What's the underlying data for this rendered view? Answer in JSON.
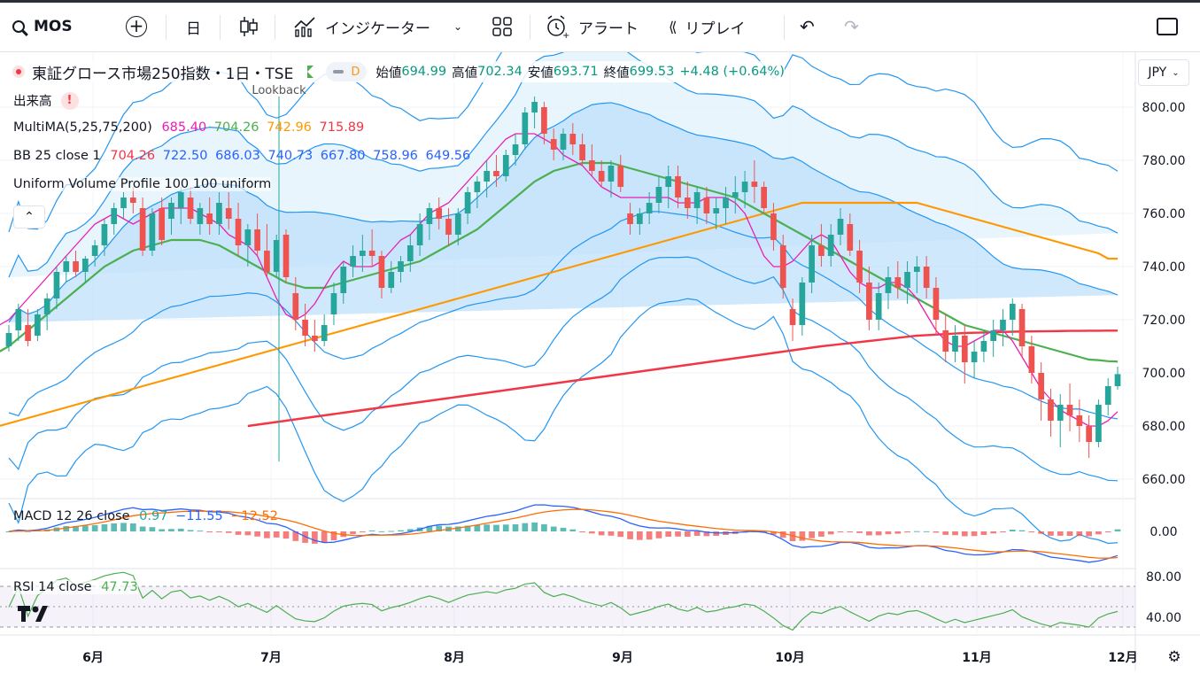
{
  "toolbar": {
    "symbol": "MOS",
    "interval": "日",
    "indicators_label": "インジケーター",
    "alert_label": "アラート",
    "replay_label": "リプレイ"
  },
  "legend": {
    "title": "東証グロース市場250指数・1日・TSE",
    "badge_d": "D",
    "open_label": "始値",
    "open": "694.99",
    "high_label": "高値",
    "high": "702.34",
    "low_label": "安値",
    "low": "693.71",
    "close_label": "終値",
    "close": "699.53",
    "change": "+4.48 (+0.64%)",
    "volume_label": "出来高",
    "multima_label": "MultiMA(5,25,75,200)",
    "multima_vals": [
      "685.40",
      "704.26",
      "742.96",
      "715.89"
    ],
    "bb_label": "BB 25 close 1",
    "bb_vals": [
      "704.26",
      "722.50",
      "686.03",
      "740.73",
      "667.80",
      "758.96",
      "649.56"
    ],
    "uvp_label": "Uniform Volume Profile 100 100 uniform",
    "lookback": "Lookback",
    "currency": "JPY",
    "macd_label": "MACD 12 26 close",
    "macd_vals": [
      "0.97",
      "−11.55",
      "−12.52"
    ],
    "rsi_label": "RSI 14 close",
    "rsi_val": "47.73"
  },
  "colors": {
    "up": "#26a69a",
    "down": "#ef5350",
    "ma5": "#e91eb4",
    "ma25": "#4caf50",
    "ma75": "#ff9800",
    "ma200": "#f23645",
    "bb": "#2196f3",
    "bb_fill": "#bbdefb"
  },
  "chart_data": {
    "type": "candlestick",
    "price_axis": [
      660,
      680,
      700,
      720,
      740,
      760,
      780,
      800
    ],
    "price_axis_labels": [
      "660.00",
      "680.00",
      "700.00",
      "720.00",
      "740.00",
      "760.00",
      "780.00",
      "800.00"
    ],
    "x_labels": [
      "6月",
      "7月",
      "8月",
      "9月",
      "10月",
      "11月",
      "12月"
    ],
    "ohlc": [
      [
        710,
        718,
        708,
        715
      ],
      [
        716,
        726,
        712,
        724
      ],
      [
        718,
        724,
        710,
        712
      ],
      [
        714,
        724,
        712,
        722
      ],
      [
        722,
        730,
        716,
        728
      ],
      [
        728,
        740,
        724,
        738
      ],
      [
        738,
        744,
        734,
        742
      ],
      [
        742,
        746,
        736,
        738
      ],
      [
        738,
        744,
        734,
        743
      ],
      [
        744,
        750,
        740,
        748
      ],
      [
        748,
        758,
        744,
        756
      ],
      [
        756,
        764,
        752,
        762
      ],
      [
        762,
        768,
        758,
        766
      ],
      [
        766,
        770,
        760,
        764
      ],
      [
        762,
        766,
        744,
        746
      ],
      [
        746,
        762,
        744,
        760
      ],
      [
        762,
        766,
        748,
        750
      ],
      [
        758,
        766,
        752,
        764
      ],
      [
        762,
        770,
        756,
        768
      ],
      [
        766,
        770,
        756,
        758
      ],
      [
        756,
        764,
        752,
        762
      ],
      [
        760,
        766,
        752,
        756
      ],
      [
        756,
        768,
        752,
        764
      ],
      [
        762,
        768,
        754,
        758
      ],
      [
        758,
        764,
        744,
        748
      ],
      [
        748,
        756,
        740,
        754
      ],
      [
        754,
        760,
        744,
        746
      ],
      [
        746,
        756,
        736,
        738
      ],
      [
        738,
        752,
        736,
        750
      ],
      [
        752,
        754,
        734,
        736
      ],
      [
        730,
        736,
        716,
        720
      ],
      [
        720,
        726,
        710,
        714
      ],
      [
        714,
        720,
        708,
        712
      ],
      [
        712,
        722,
        710,
        718
      ],
      [
        722,
        734,
        718,
        730
      ],
      [
        730,
        742,
        726,
        740
      ],
      [
        740,
        748,
        736,
        744
      ],
      [
        744,
        752,
        738,
        746
      ],
      [
        746,
        754,
        740,
        744
      ],
      [
        744,
        746,
        728,
        732
      ],
      [
        732,
        742,
        730,
        738
      ],
      [
        738,
        744,
        734,
        742
      ],
      [
        742,
        752,
        738,
        748
      ],
      [
        748,
        760,
        744,
        756
      ],
      [
        756,
        764,
        750,
        762
      ],
      [
        762,
        766,
        754,
        758
      ],
      [
        758,
        762,
        748,
        752
      ],
      [
        752,
        762,
        748,
        760
      ],
      [
        760,
        770,
        756,
        768
      ],
      [
        768,
        774,
        762,
        772
      ],
      [
        772,
        780,
        766,
        776
      ],
      [
        776,
        782,
        770,
        774
      ],
      [
        774,
        784,
        772,
        782
      ],
      [
        782,
        790,
        778,
        786
      ],
      [
        786,
        800,
        784,
        798
      ],
      [
        798,
        804,
        792,
        802
      ],
      [
        800,
        802,
        786,
        790
      ],
      [
        788,
        792,
        780,
        784
      ],
      [
        784,
        792,
        780,
        790
      ],
      [
        790,
        794,
        782,
        786
      ],
      [
        786,
        790,
        778,
        780
      ],
      [
        780,
        786,
        774,
        776
      ],
      [
        776,
        780,
        770,
        772
      ],
      [
        772,
        780,
        766,
        778
      ],
      [
        778,
        782,
        768,
        770
      ],
      [
        760,
        764,
        752,
        756
      ],
      [
        756,
        762,
        752,
        760
      ],
      [
        760,
        768,
        756,
        764
      ],
      [
        764,
        774,
        760,
        770
      ],
      [
        770,
        778,
        762,
        774
      ],
      [
        774,
        778,
        762,
        766
      ],
      [
        766,
        772,
        758,
        762
      ],
      [
        762,
        770,
        756,
        768
      ],
      [
        766,
        770,
        756,
        760
      ],
      [
        760,
        766,
        754,
        762
      ],
      [
        762,
        770,
        756,
        766
      ],
      [
        766,
        774,
        760,
        768
      ],
      [
        768,
        776,
        762,
        772
      ],
      [
        772,
        780,
        764,
        770
      ],
      [
        770,
        772,
        760,
        762
      ],
      [
        760,
        764,
        746,
        750
      ],
      [
        748,
        752,
        728,
        732
      ],
      [
        724,
        728,
        712,
        718
      ],
      [
        718,
        736,
        714,
        734
      ],
      [
        734,
        752,
        730,
        748
      ],
      [
        748,
        756,
        740,
        744
      ],
      [
        744,
        756,
        740,
        752
      ],
      [
        752,
        762,
        748,
        758
      ],
      [
        756,
        760,
        744,
        746
      ],
      [
        746,
        750,
        730,
        734
      ],
      [
        734,
        740,
        716,
        720
      ],
      [
        720,
        734,
        716,
        730
      ],
      [
        730,
        740,
        724,
        736
      ],
      [
        736,
        742,
        728,
        732
      ],
      [
        732,
        742,
        726,
        738
      ],
      [
        738,
        744,
        730,
        740
      ],
      [
        740,
        744,
        728,
        732
      ],
      [
        732,
        736,
        714,
        720
      ],
      [
        716,
        722,
        704,
        708
      ],
      [
        708,
        718,
        704,
        714
      ],
      [
        714,
        718,
        696,
        704
      ],
      [
        704,
        712,
        698,
        708
      ],
      [
        708,
        716,
        704,
        712
      ],
      [
        712,
        720,
        706,
        716
      ],
      [
        716,
        724,
        710,
        720
      ],
      [
        720,
        728,
        714,
        726
      ],
      [
        724,
        726,
        706,
        710
      ],
      [
        710,
        714,
        696,
        700
      ],
      [
        700,
        704,
        682,
        690
      ],
      [
        690,
        694,
        676,
        682
      ],
      [
        682,
        692,
        672,
        688
      ],
      [
        688,
        696,
        678,
        684
      ],
      [
        684,
        690,
        674,
        680
      ],
      [
        680,
        684,
        668,
        674
      ],
      [
        674,
        690,
        672,
        688
      ],
      [
        688,
        698,
        684,
        695
      ],
      [
        694.99,
        702.34,
        693.71,
        699.53
      ]
    ],
    "ma5": [
      709,
      713,
      716,
      718,
      720,
      724,
      728,
      732,
      736,
      740,
      744,
      748,
      752,
      756,
      758,
      760,
      758,
      756,
      758,
      760,
      762,
      762,
      762,
      762,
      760,
      758,
      756,
      752,
      750,
      748,
      744,
      736,
      728,
      722,
      720,
      722,
      726,
      732,
      738,
      742,
      740,
      740,
      740,
      742,
      746,
      750,
      752,
      756,
      760,
      762,
      764,
      768,
      772,
      776,
      780,
      784,
      788,
      790,
      790,
      790,
      788,
      786,
      782,
      780,
      778,
      774,
      770,
      768,
      766,
      766,
      766,
      766,
      766,
      766,
      764,
      764,
      764,
      766,
      766,
      766,
      764,
      760,
      752,
      744,
      740,
      740,
      742,
      746,
      750,
      752,
      750,
      744,
      738,
      734,
      732,
      732,
      734,
      734,
      732,
      728,
      722,
      716,
      712,
      710,
      710,
      712,
      714,
      716,
      716,
      712,
      706,
      700,
      694,
      690,
      686,
      684,
      682,
      680,
      680,
      682,
      685.4
    ],
    "ma25": [
      702,
      704,
      706,
      708,
      710,
      713,
      716,
      719,
      722,
      725,
      728,
      731,
      734,
      737,
      740,
      742,
      744,
      746,
      747,
      748,
      749,
      750,
      750,
      750,
      750,
      749,
      748,
      746,
      744,
      742,
      740,
      738,
      736,
      734,
      733,
      732,
      732,
      732,
      733,
      734,
      735,
      736,
      737,
      738,
      739,
      740,
      741,
      742,
      744,
      746,
      748,
      750,
      752,
      754,
      757,
      760,
      763,
      766,
      769,
      772,
      774,
      776,
      777,
      778,
      779,
      779,
      779,
      779,
      778,
      777,
      776,
      775,
      774,
      773,
      772,
      771,
      770,
      769,
      768,
      767,
      766,
      764,
      762,
      760,
      758,
      756,
      754,
      752,
      750,
      748,
      746,
      744,
      742,
      740,
      738,
      736,
      734,
      732,
      730,
      728,
      726,
      724,
      722,
      720,
      718,
      717,
      716,
      715,
      714,
      713,
      712,
      711,
      710,
      709,
      708,
      707,
      706,
      705,
      704.8,
      704.4,
      704.26
    ],
    "ma75": [
      675,
      676,
      677,
      678,
      679,
      680,
      681,
      682,
      683,
      684,
      685,
      686,
      687,
      688,
      689,
      690,
      691,
      692,
      693,
      694,
      695,
      696,
      697,
      698,
      699,
      700,
      701,
      702,
      703,
      704,
      705,
      706,
      707,
      708,
      709,
      710,
      711,
      712,
      713,
      714,
      715,
      716,
      717,
      718,
      719,
      720,
      721,
      722,
      723,
      724,
      725,
      726,
      727,
      728,
      729,
      730,
      731,
      732,
      733,
      734,
      735,
      736,
      737,
      738,
      739,
      740,
      741,
      742,
      743,
      744,
      745,
      746,
      747,
      748,
      749,
      750,
      751,
      752,
      753,
      754,
      755,
      756,
      757,
      758,
      759,
      760,
      761,
      762,
      763,
      764,
      764,
      764,
      764,
      764,
      764,
      764,
      764,
      764,
      764,
      764,
      764,
      764,
      763,
      762,
      761,
      760,
      759,
      758,
      757,
      756,
      755,
      754,
      753,
      752,
      751,
      750,
      749,
      748,
      747,
      746,
      745,
      743,
      742.96
    ],
    "ma200": [
      680,
      680.5,
      681,
      681.5,
      682,
      682.5,
      683,
      683.5,
      684,
      684.5,
      685,
      685.5,
      686,
      686.5,
      687,
      687.5,
      688,
      688.5,
      689,
      689.5,
      690,
      690.5,
      691,
      691.5,
      692,
      692.5,
      693,
      693.5,
      694,
      694.5,
      695,
      695.5,
      696,
      696.5,
      697,
      697.5,
      698,
      698.5,
      699,
      699.5,
      700,
      700.5,
      701,
      701.5,
      702,
      702.5,
      703,
      703.5,
      704,
      704.5,
      705,
      705.5,
      706,
      706.5,
      707,
      707.5,
      708,
      708.5,
      709,
      709.5,
      710,
      710.4,
      710.8,
      711.2,
      711.6,
      712,
      712.4,
      712.8,
      713.2,
      713.6,
      714,
      714.2,
      714.4,
      714.6,
      714.8,
      715,
      715.1,
      715.2,
      715.3,
      715.4,
      715.5,
      715.55,
      715.6,
      715.65,
      715.7,
      715.75,
      715.8,
      715.82,
      715.84,
      715.86,
      715.88,
      715.89
    ]
  }
}
